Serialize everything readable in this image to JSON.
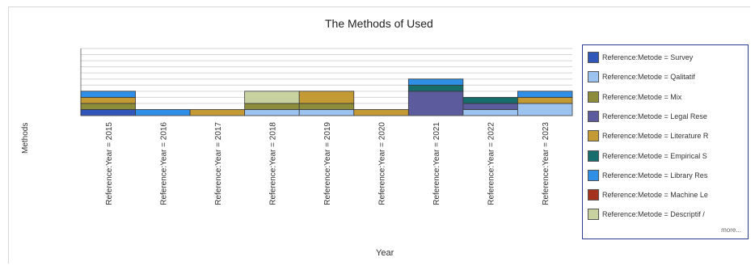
{
  "chart_data": {
    "type": "bar",
    "stacked": true,
    "title": "The Methods of Used",
    "xlabel": "Year",
    "ylabel": "Methods",
    "categories": [
      "Reference:Year = 2015",
      "Reference:Year = 2016",
      "Reference:Year = 2017",
      "Reference:Year = 2018",
      "Reference:Year = 2019",
      "Reference:Year = 2020",
      "Reference:Year = 2021",
      "Reference:Year = 2022",
      "Reference:Year = 2023"
    ],
    "series": [
      {
        "name": "Reference:Metode = Survey",
        "color": "#2f56b8",
        "values": [
          1,
          0,
          0,
          0,
          0,
          0,
          0,
          0,
          0
        ]
      },
      {
        "name": "Reference:Metode = Qalitatif",
        "color": "#9cc3f0",
        "values": [
          0,
          0,
          0,
          1,
          1,
          0,
          0,
          1,
          2
        ]
      },
      {
        "name": "Reference:Metode = Mix",
        "color": "#8c8c3a",
        "values": [
          1,
          0,
          0,
          1,
          1,
          0,
          0,
          0,
          0
        ]
      },
      {
        "name": "Reference:Metode = Legal Rese",
        "color": "#5b5b9e",
        "values": [
          0,
          0,
          0,
          0,
          0,
          0,
          4,
          1,
          0
        ]
      },
      {
        "name": "Reference:Metode = Literature R",
        "color": "#c49a35",
        "values": [
          1,
          0,
          1,
          0,
          2,
          1,
          0,
          0,
          1
        ]
      },
      {
        "name": "Reference:Metode = Empirical S",
        "color": "#176c6c",
        "values": [
          0,
          0,
          0,
          0,
          0,
          0,
          1,
          1,
          0
        ]
      },
      {
        "name": "Reference:Metode = Library Res",
        "color": "#2f8ee6",
        "values": [
          1,
          1,
          0,
          0,
          0,
          0,
          1,
          0,
          1
        ]
      },
      {
        "name": "Reference:Metode = Machine Le",
        "color": "#a5321d",
        "values": [
          0,
          0,
          0,
          0,
          0,
          0,
          0,
          0,
          0
        ]
      },
      {
        "name": "Reference:Metode = Descriptif /",
        "color": "#c8d2a0",
        "values": [
          0,
          0,
          0,
          2,
          0,
          0,
          0,
          0,
          0
        ]
      }
    ],
    "ylim": [
      0,
      11
    ],
    "grid": true,
    "legend_position": "right"
  },
  "legend_more": "more..."
}
